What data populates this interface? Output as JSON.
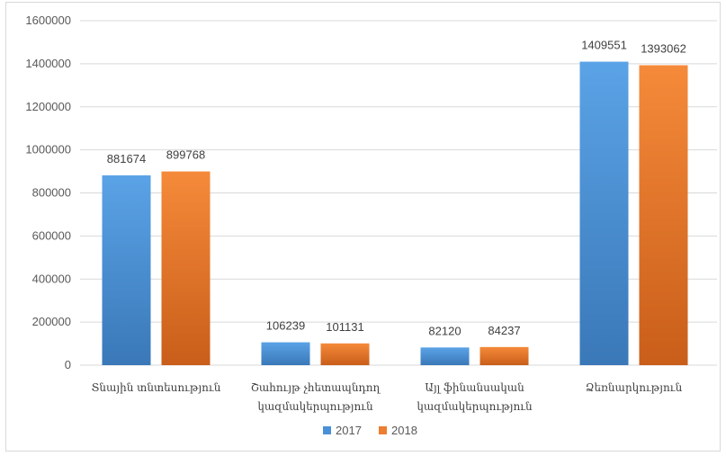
{
  "chart_data": {
    "type": "bar",
    "categories": [
      [
        "Տնային տնտեսություն"
      ],
      [
        "Շահույթ չհետապնդող",
        "կազմակերպություն"
      ],
      [
        "Այլ ֆինանսական",
        "կազմակերպություն"
      ],
      [
        "Ձեռնարկություն"
      ]
    ],
    "series": [
      {
        "name": "2017",
        "color": "#4a90d9",
        "values": [
          881674,
          106239,
          82120,
          1409551
        ]
      },
      {
        "name": "2018",
        "color": "#ed7d31",
        "values": [
          899768,
          101131,
          84237,
          1393062
        ]
      }
    ],
    "ylim": [
      0,
      1600000
    ],
    "yticks": [
      0,
      200000,
      400000,
      600000,
      800000,
      1000000,
      1200000,
      1400000,
      1600000
    ],
    "grid": true,
    "legend_position": "bottom"
  }
}
